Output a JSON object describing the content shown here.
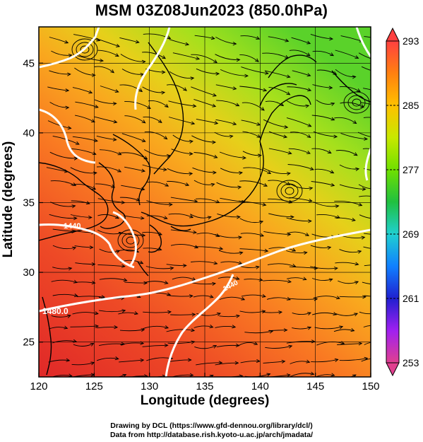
{
  "title": "MSM 03Z08Jun2023 (850.0hPa)",
  "axes": {
    "x_label": "Longitude (degrees)",
    "y_label": "Latitude  (degrees)",
    "x_ticks": [
      "120",
      "125",
      "130",
      "135",
      "140",
      "145",
      "150"
    ],
    "y_ticks": [
      "25",
      "30",
      "35",
      "40",
      "45"
    ]
  },
  "colorbar": {
    "ticks": [
      "293",
      "285",
      "277",
      "269",
      "261",
      "253"
    ],
    "colors": [
      "#e0408f",
      "#a020f0",
      "#2020d0",
      "#1080ff",
      "#20d0d0",
      "#20c040",
      "#70e000",
      "#c8e800",
      "#ffc000",
      "#ff8010",
      "#ff4040"
    ]
  },
  "contour_labels": [
    "1440",
    "1480.0",
    "1440"
  ],
  "credits": {
    "line1": "Drawing by DCL (https://www.gfd-dennou.org/library/dcl/)",
    "line2": "Data from http://database.rish.kyoto-u.ac.jp/arch/jmadata/"
  }
}
